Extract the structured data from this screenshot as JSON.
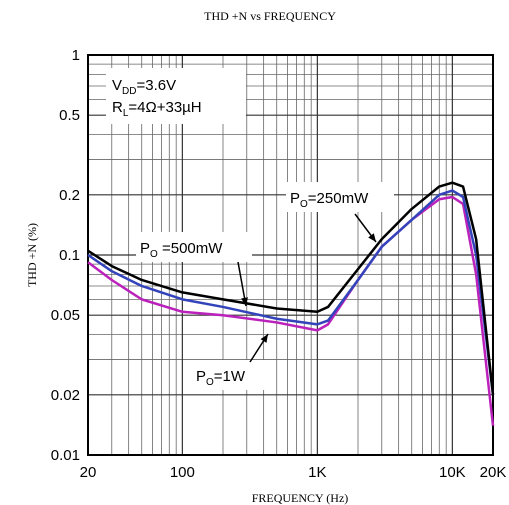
{
  "chart_data": {
    "type": "line",
    "title": "THD +N vs FREQUENCY",
    "xlabel": "FREQUENCY (Hz)",
    "ylabel": "THD +N (%)",
    "xscale": "log",
    "yscale": "log",
    "grid": true,
    "xlim": [
      20,
      20000
    ],
    "ylim": [
      0.01,
      1
    ],
    "xticks": [
      20,
      100,
      {
        "value": 1000,
        "label": "1K"
      },
      {
        "value": 10000,
        "label": "10K"
      },
      {
        "value": 20000,
        "label": "20K"
      }
    ],
    "yticks": [
      0.01,
      0.02,
      0.05,
      0.1,
      0.2,
      0.5,
      1
    ],
    "xminor": [
      30,
      40,
      50,
      60,
      70,
      80,
      90,
      200,
      300,
      400,
      500,
      600,
      700,
      800,
      900,
      2000,
      3000,
      4000,
      5000,
      6000,
      7000,
      8000,
      9000
    ],
    "yminor": [
      0.03,
      0.04,
      0.06,
      0.07,
      0.08,
      0.09,
      0.3,
      0.4,
      0.6,
      0.7,
      0.8,
      0.9
    ],
    "x": [
      20,
      30,
      50,
      100,
      200,
      500,
      1000,
      1200,
      2000,
      3000,
      5000,
      8000,
      10000,
      12000,
      15000,
      20000
    ],
    "series": [
      {
        "name": "PO=250mW",
        "color": "#000000",
        "values": [
          0.105,
          0.088,
          0.075,
          0.065,
          0.06,
          0.054,
          0.052,
          0.055,
          0.085,
          0.12,
          0.17,
          0.22,
          0.23,
          0.22,
          0.12,
          0.02
        ]
      },
      {
        "name": "PO=500mW",
        "color": "#3344bb",
        "values": [
          0.1,
          0.083,
          0.07,
          0.06,
          0.055,
          0.048,
          0.045,
          0.047,
          0.075,
          0.11,
          0.15,
          0.2,
          0.21,
          0.195,
          0.1,
          0.02
        ]
      },
      {
        "name": "PO=1W",
        "color": "#bb22bb",
        "values": [
          0.092,
          0.075,
          0.06,
          0.052,
          0.05,
          0.046,
          0.042,
          0.045,
          0.075,
          0.11,
          0.15,
          0.19,
          0.195,
          0.18,
          0.08,
          0.014
        ]
      }
    ],
    "annotations": [
      {
        "parts": [
          "V",
          "DD",
          "=3.6V"
        ]
      },
      {
        "parts": [
          "R",
          "L",
          "=4Ω+33µH"
        ]
      },
      {
        "parts": [
          "P",
          "O",
          "=250mW"
        ]
      },
      {
        "parts": [
          "P",
          "O",
          " =500mW"
        ]
      },
      {
        "parts": [
          "P",
          "O",
          "=1W"
        ]
      }
    ]
  }
}
